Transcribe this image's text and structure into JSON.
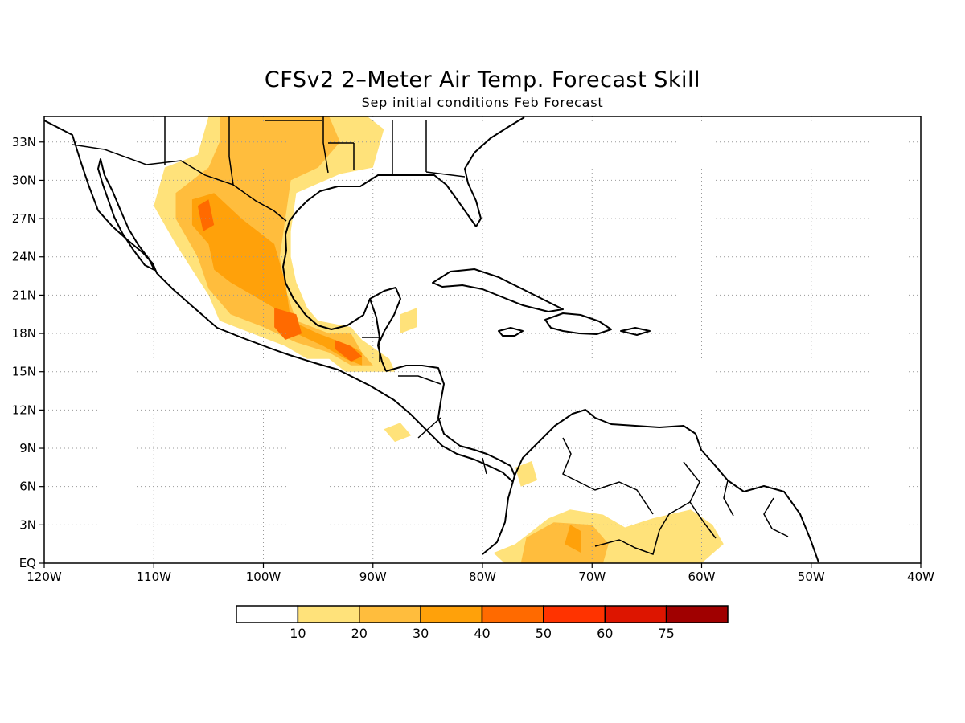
{
  "title": "CFSv2 2–Meter Air Temp. Forecast Skill",
  "subtitle": "Sep initial conditions  Feb Forecast",
  "map": {
    "lon_range": [
      -120,
      -40
    ],
    "lat_range": [
      0,
      35
    ],
    "grid": "dotted",
    "lon_ticks": [
      {
        "value": -120,
        "label": "120W"
      },
      {
        "value": -110,
        "label": "110W"
      },
      {
        "value": -100,
        "label": "100W"
      },
      {
        "value": -90,
        "label": "90W"
      },
      {
        "value": -80,
        "label": "80W"
      },
      {
        "value": -70,
        "label": "70W"
      },
      {
        "value": -60,
        "label": "60W"
      },
      {
        "value": -50,
        "label": "50W"
      },
      {
        "value": -40,
        "label": "40W"
      }
    ],
    "lat_ticks": [
      {
        "value": 0,
        "label": "EQ"
      },
      {
        "value": 3,
        "label": "3N"
      },
      {
        "value": 6,
        "label": "6N"
      },
      {
        "value": 9,
        "label": "9N"
      },
      {
        "value": 12,
        "label": "12N"
      },
      {
        "value": 15,
        "label": "15N"
      },
      {
        "value": 18,
        "label": "18N"
      },
      {
        "value": 21,
        "label": "21N"
      },
      {
        "value": 24,
        "label": "24N"
      },
      {
        "value": 27,
        "label": "27N"
      },
      {
        "value": 30,
        "label": "30N"
      },
      {
        "value": 33,
        "label": "33N"
      }
    ]
  },
  "colorbar": {
    "colors": [
      "#ffffff",
      "#ffe27a",
      "#ffbd3d",
      "#ffa10a",
      "#ff6a00",
      "#ff3300",
      "#dd1500",
      "#a00000"
    ],
    "labels": [
      "10",
      "20",
      "30",
      "40",
      "50",
      "60",
      "75"
    ]
  },
  "skill_regions": [
    {
      "level": 1,
      "points": [
        [
          -105,
          35
        ],
        [
          -90.5,
          35
        ],
        [
          -89,
          34
        ],
        [
          -90,
          31
        ],
        [
          -93,
          30.5
        ],
        [
          -97,
          29
        ],
        [
          -97.5,
          26
        ],
        [
          -97.5,
          24
        ],
        [
          -97,
          22
        ],
        [
          -96,
          20
        ],
        [
          -95,
          19
        ],
        [
          -92,
          18.5
        ],
        [
          -91,
          17.5
        ],
        [
          -88.5,
          16
        ],
        [
          -88,
          15
        ],
        [
          -90,
          15
        ],
        [
          -92.5,
          15
        ],
        [
          -94,
          16
        ],
        [
          -96,
          16
        ],
        [
          -98,
          17
        ],
        [
          -101,
          18
        ],
        [
          -104,
          19
        ],
        [
          -105,
          21
        ],
        [
          -106.5,
          23
        ],
        [
          -108,
          25
        ],
        [
          -110,
          28
        ],
        [
          -109,
          31
        ],
        [
          -106,
          32
        ],
        [
          -105,
          35
        ]
      ]
    },
    {
      "level": 2,
      "points": [
        [
          -104,
          35
        ],
        [
          -94,
          35
        ],
        [
          -93,
          33
        ],
        [
          -95,
          31
        ],
        [
          -97.5,
          30
        ],
        [
          -98,
          27
        ],
        [
          -98.5,
          24
        ],
        [
          -98,
          21.5
        ],
        [
          -97,
          19
        ],
        [
          -94,
          18
        ],
        [
          -92,
          18
        ],
        [
          -91,
          16.5
        ],
        [
          -90,
          15.5
        ],
        [
          -92,
          15.5
        ],
        [
          -94,
          16.5
        ],
        [
          -97,
          17.3
        ],
        [
          -100,
          18.5
        ],
        [
          -103,
          19.5
        ],
        [
          -105,
          21.5
        ],
        [
          -106,
          24
        ],
        [
          -108,
          27
        ],
        [
          -108,
          29
        ],
        [
          -105,
          31
        ],
        [
          -104,
          33
        ],
        [
          -104,
          35
        ]
      ]
    },
    {
      "level": 3,
      "points": [
        [
          -106.5,
          28.5
        ],
        [
          -104.5,
          29
        ],
        [
          -102,
          27
        ],
        [
          -99,
          25
        ],
        [
          -98,
          22
        ],
        [
          -97.5,
          19
        ],
        [
          -95,
          18
        ],
        [
          -93.5,
          17.5
        ],
        [
          -92,
          17
        ],
        [
          -91,
          16.5
        ],
        [
          -91,
          15.5
        ],
        [
          -92.5,
          16
        ],
        [
          -94.5,
          17
        ],
        [
          -97,
          18
        ],
        [
          -99,
          20
        ],
        [
          -101,
          21
        ],
        [
          -103,
          22
        ],
        [
          -104.5,
          23
        ],
        [
          -105,
          25
        ],
        [
          -106.5,
          26.5
        ],
        [
          -106.5,
          28.5
        ]
      ]
    },
    {
      "level": 4,
      "points": [
        [
          -106,
          28
        ],
        [
          -105,
          28.5
        ],
        [
          -104.5,
          26.5
        ],
        [
          -105.5,
          26
        ],
        [
          -106,
          28
        ]
      ]
    },
    {
      "level": 4,
      "points": [
        [
          -99,
          20
        ],
        [
          -97,
          19.5
        ],
        [
          -96.5,
          18
        ],
        [
          -98,
          17.5
        ],
        [
          -99,
          18.5
        ],
        [
          -99,
          20
        ]
      ]
    },
    {
      "level": 4,
      "points": [
        [
          -93.5,
          17.5
        ],
        [
          -92,
          17
        ],
        [
          -91,
          16.2
        ],
        [
          -92,
          15.8
        ],
        [
          -93.5,
          16.8
        ],
        [
          -93.5,
          17.5
        ]
      ]
    },
    {
      "level": 1,
      "points": [
        [
          -77,
          1.5
        ],
        [
          -74,
          3.5
        ],
        [
          -72,
          4.2
        ],
        [
          -69,
          3.8
        ],
        [
          -67,
          2.8
        ],
        [
          -64.5,
          3.5
        ],
        [
          -61,
          4.2
        ],
        [
          -59,
          3
        ],
        [
          -58,
          1.5
        ],
        [
          -60,
          0
        ],
        [
          -78,
          0
        ],
        [
          -79,
          0.8
        ],
        [
          -77,
          1.5
        ]
      ]
    },
    {
      "level": 2,
      "points": [
        [
          -76,
          2
        ],
        [
          -73.5,
          3.2
        ],
        [
          -70,
          3
        ],
        [
          -68.5,
          1.5
        ],
        [
          -69,
          0
        ],
        [
          -76.5,
          0
        ],
        [
          -76,
          2
        ]
      ]
    },
    {
      "level": 3,
      "points": [
        [
          -72,
          3
        ],
        [
          -71,
          2.5
        ],
        [
          -71,
          0.8
        ],
        [
          -72.5,
          1.5
        ],
        [
          -72,
          3
        ]
      ]
    },
    {
      "level": 1,
      "points": [
        [
          -89,
          10.5
        ],
        [
          -87.5,
          11
        ],
        [
          -86.5,
          10
        ],
        [
          -88,
          9.5
        ],
        [
          -89,
          10.5
        ]
      ]
    },
    {
      "level": 1,
      "points": [
        [
          -77,
          7.5
        ],
        [
          -75.5,
          8
        ],
        [
          -75,
          6.5
        ],
        [
          -76.5,
          6
        ],
        [
          -77,
          7.5
        ]
      ]
    },
    {
      "level": 1,
      "points": [
        [
          -87.5,
          19.5
        ],
        [
          -86,
          20
        ],
        [
          -86,
          18.5
        ],
        [
          -87.5,
          18
        ],
        [
          -87.5,
          19.5
        ]
      ]
    }
  ]
}
